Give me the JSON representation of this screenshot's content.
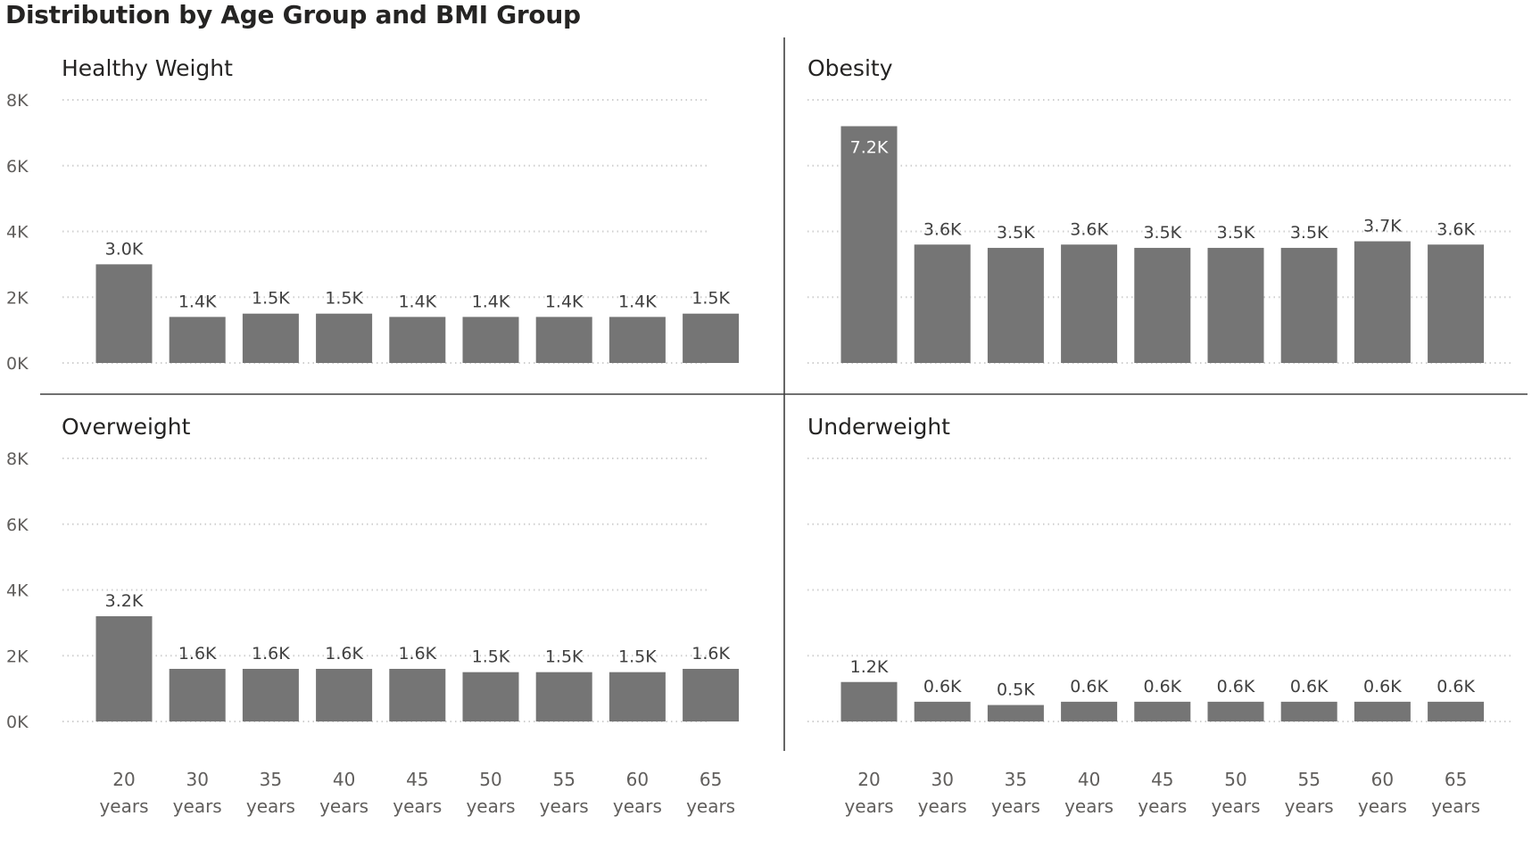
{
  "chart_data": {
    "type": "bar",
    "title": "Distribution by Age Group and BMI Group",
    "categories": [
      "20 years",
      "30 years",
      "35 years",
      "40 years",
      "45 years",
      "50 years",
      "55 years",
      "60 years",
      "65 years"
    ],
    "ylim": [
      0,
      8000
    ],
    "yticks": [
      0,
      2000,
      4000,
      6000,
      8000
    ],
    "ytick_labels": [
      "0K",
      "2K",
      "4K",
      "6K",
      "8K"
    ],
    "grid": true,
    "bar_color": "#757575",
    "panels": [
      {
        "title": "Healthy Weight",
        "values": [
          3000,
          1400,
          1500,
          1500,
          1400,
          1400,
          1400,
          1400,
          1500
        ],
        "labels": [
          "3.0K",
          "1.4K",
          "1.5K",
          "1.5K",
          "1.4K",
          "1.4K",
          "1.4K",
          "1.4K",
          "1.5K"
        ]
      },
      {
        "title": "Obesity",
        "values": [
          7200,
          3600,
          3500,
          3600,
          3500,
          3500,
          3500,
          3700,
          3600
        ],
        "labels": [
          "7.2K",
          "3.6K",
          "3.5K",
          "3.6K",
          "3.5K",
          "3.5K",
          "3.5K",
          "3.7K",
          "3.6K"
        ]
      },
      {
        "title": "Overweight",
        "values": [
          3200,
          1600,
          1600,
          1600,
          1600,
          1500,
          1500,
          1500,
          1600
        ],
        "labels": [
          "3.2K",
          "1.6K",
          "1.6K",
          "1.6K",
          "1.6K",
          "1.5K",
          "1.5K",
          "1.5K",
          "1.6K"
        ]
      },
      {
        "title": "Underweight",
        "values": [
          1200,
          600,
          500,
          600,
          600,
          600,
          600,
          600,
          600
        ],
        "labels": [
          "1.2K",
          "0.6K",
          "0.5K",
          "0.6K",
          "0.6K",
          "0.6K",
          "0.6K",
          "0.6K",
          "0.6K"
        ]
      }
    ]
  }
}
